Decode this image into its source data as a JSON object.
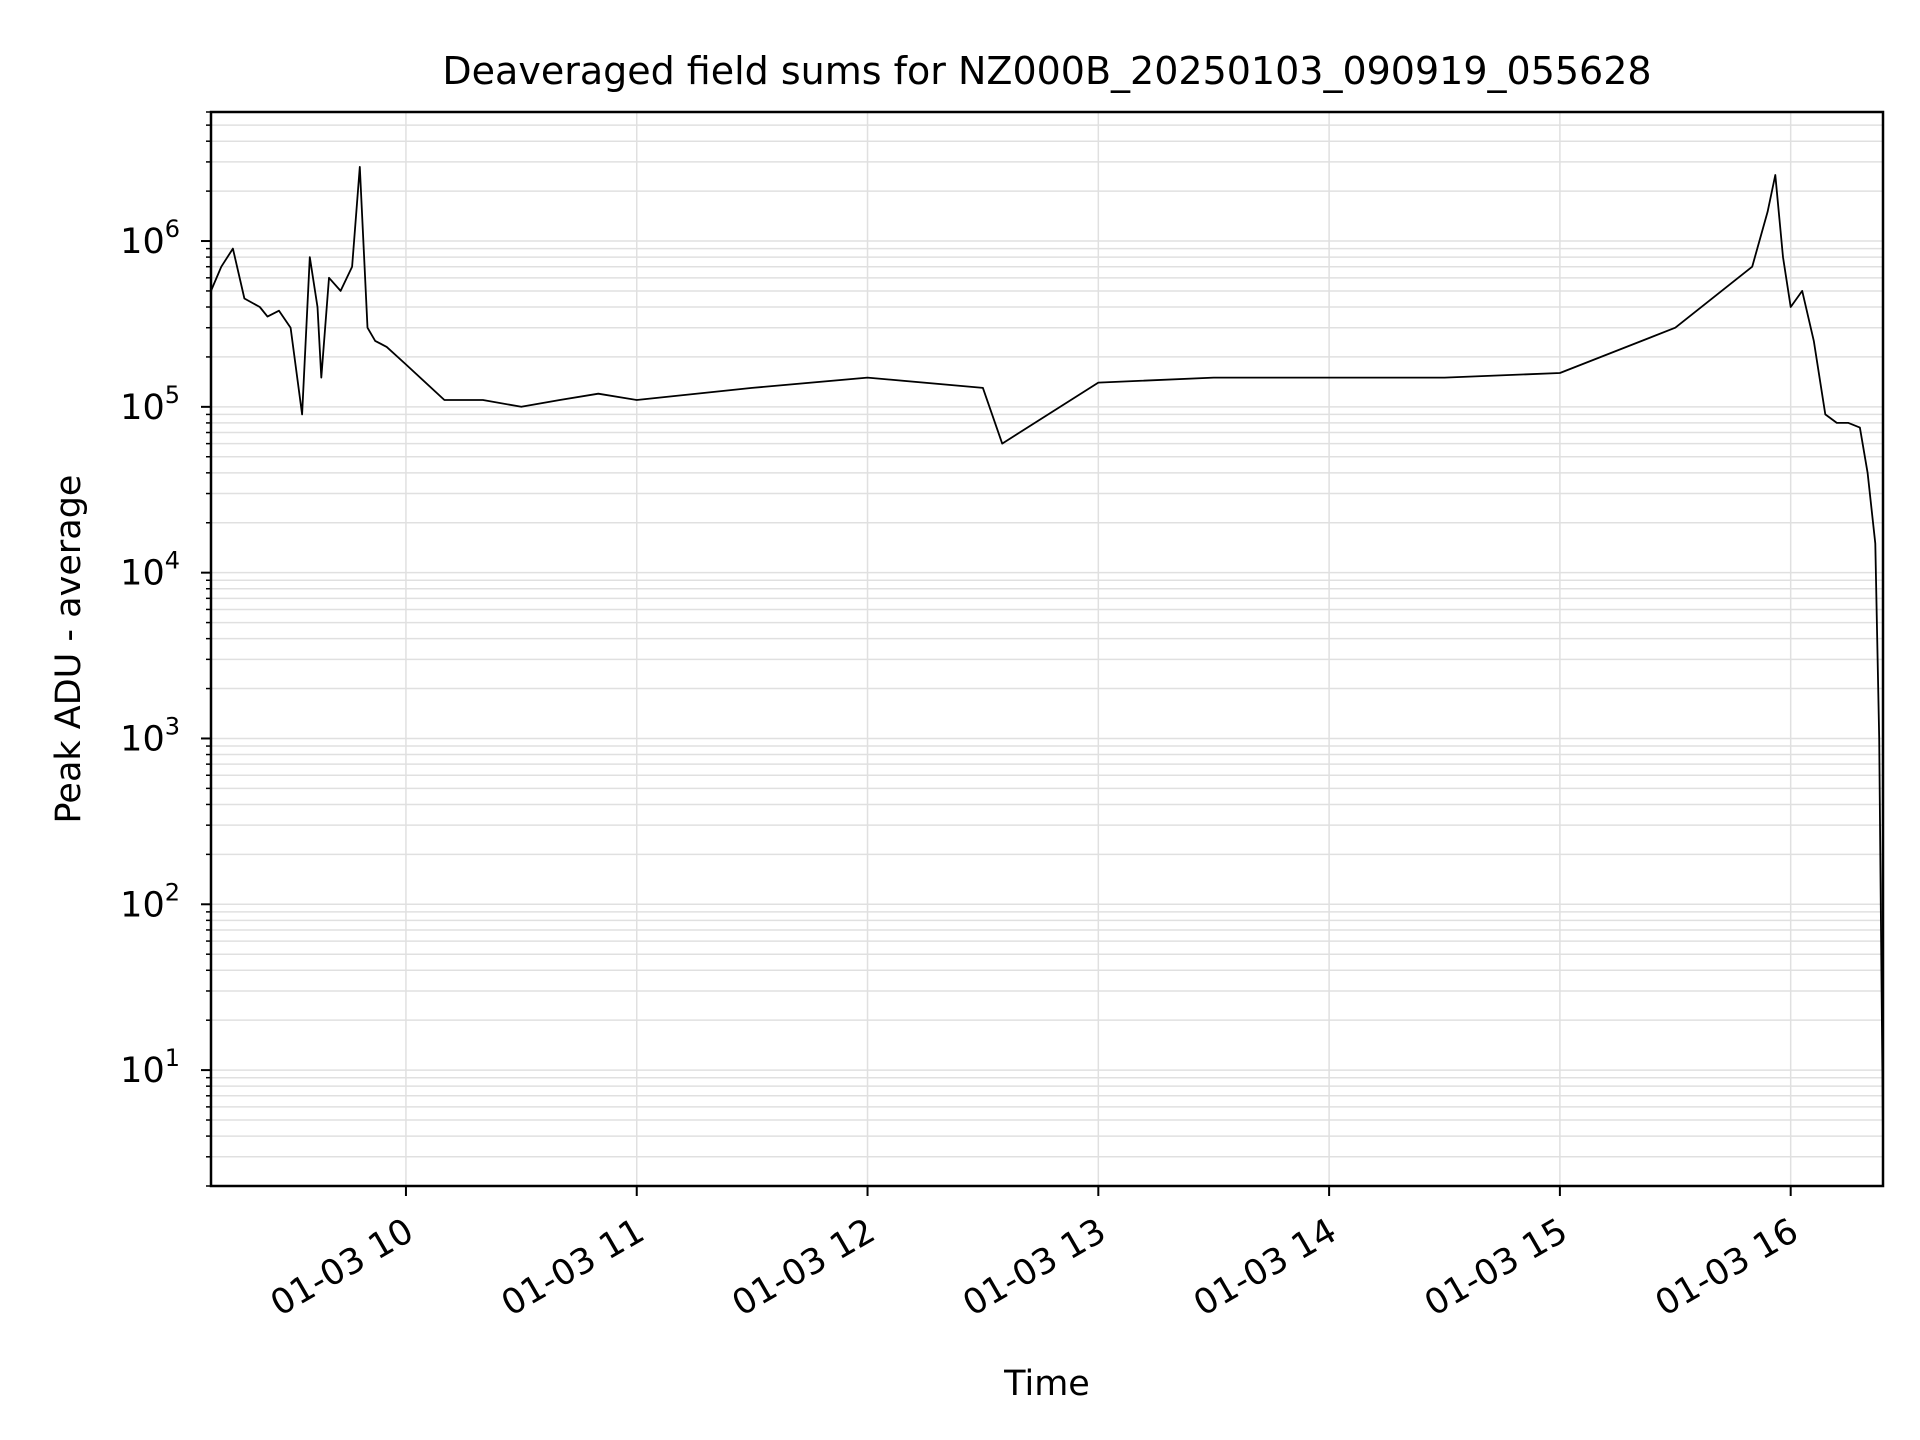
{
  "chart_data": {
    "type": "line",
    "title": "Deaveraged field sums for NZ000B_20250103_090919_055628",
    "xlabel": "Time",
    "ylabel": "Peak ADU - average",
    "yscale": "log",
    "xlim": [
      "2025-01-03 09:09:19",
      "2025-01-03 16:24:00"
    ],
    "ylim": [
      2,
      6000000
    ],
    "x_ticks": [
      {
        "label": "01-03 10",
        "t": "2025-01-03 10:00:00"
      },
      {
        "label": "01-03 11",
        "t": "2025-01-03 11:00:00"
      },
      {
        "label": "01-03 12",
        "t": "2025-01-03 12:00:00"
      },
      {
        "label": "01-03 13",
        "t": "2025-01-03 13:00:00"
      },
      {
        "label": "01-03 14",
        "t": "2025-01-03 14:00:00"
      },
      {
        "label": "01-03 15",
        "t": "2025-01-03 15:00:00"
      },
      {
        "label": "01-03 16",
        "t": "2025-01-03 16:00:00"
      }
    ],
    "y_ticks": [
      {
        "base": "10",
        "exp": "1",
        "value": 10
      },
      {
        "base": "10",
        "exp": "2",
        "value": 100
      },
      {
        "base": "10",
        "exp": "3",
        "value": 1000
      },
      {
        "base": "10",
        "exp": "4",
        "value": 10000
      },
      {
        "base": "10",
        "exp": "5",
        "value": 100000
      },
      {
        "base": "10",
        "exp": "6",
        "value": 1000000
      }
    ],
    "grid": true,
    "line_color": "#000000",
    "grid_color": "#e0e0e0",
    "series": [
      {
        "x": [
          "2025-01-03 09:09:19",
          "2025-01-03 09:12:00",
          "2025-01-03 09:15:00",
          "2025-01-03 09:18:00",
          "2025-01-03 09:22:00",
          "2025-01-03 09:24:00",
          "2025-01-03 09:27:00",
          "2025-01-03 09:30:00",
          "2025-01-03 09:33:00",
          "2025-01-03 09:35:00",
          "2025-01-03 09:37:00",
          "2025-01-03 09:38:00",
          "2025-01-03 09:40:00",
          "2025-01-03 09:43:00",
          "2025-01-03 09:46:00",
          "2025-01-03 09:48:00",
          "2025-01-03 09:50:00",
          "2025-01-03 09:52:00",
          "2025-01-03 09:55:00",
          "2025-01-03 10:00:00",
          "2025-01-03 10:10:00",
          "2025-01-03 10:20:00",
          "2025-01-03 10:30:00",
          "2025-01-03 10:40:00",
          "2025-01-03 10:50:00",
          "2025-01-03 11:00:00",
          "2025-01-03 11:30:00",
          "2025-01-03 12:00:00",
          "2025-01-03 12:30:00",
          "2025-01-03 12:35:00",
          "2025-01-03 13:00:00",
          "2025-01-03 13:30:00",
          "2025-01-03 14:00:00",
          "2025-01-03 14:30:00",
          "2025-01-03 15:00:00",
          "2025-01-03 15:30:00",
          "2025-01-03 15:50:00",
          "2025-01-03 15:54:00",
          "2025-01-03 15:56:00",
          "2025-01-03 15:58:00",
          "2025-01-03 16:00:00",
          "2025-01-03 16:03:00",
          "2025-01-03 16:06:00",
          "2025-01-03 16:09:00",
          "2025-01-03 16:12:00",
          "2025-01-03 16:15:00",
          "2025-01-03 16:18:00",
          "2025-01-03 16:20:00",
          "2025-01-03 16:22:00",
          "2025-01-03 16:23:00",
          "2025-01-03 16:24:00"
        ],
        "y": [
          500000,
          700000,
          900000,
          450000,
          400000,
          350000,
          380000,
          300000,
          90000,
          800000,
          400000,
          150000,
          600000,
          500000,
          700000,
          2800000,
          300000,
          250000,
          230000,
          180000,
          110000,
          110000,
          100000,
          110000,
          120000,
          110000,
          130000,
          150000,
          130000,
          60000,
          140000,
          150000,
          150000,
          150000,
          160000,
          300000,
          700000,
          1500000,
          2500000,
          800000,
          400000,
          500000,
          250000,
          90000,
          80000,
          80000,
          75000,
          40000,
          15000,
          1000,
          4
        ]
      }
    ]
  }
}
